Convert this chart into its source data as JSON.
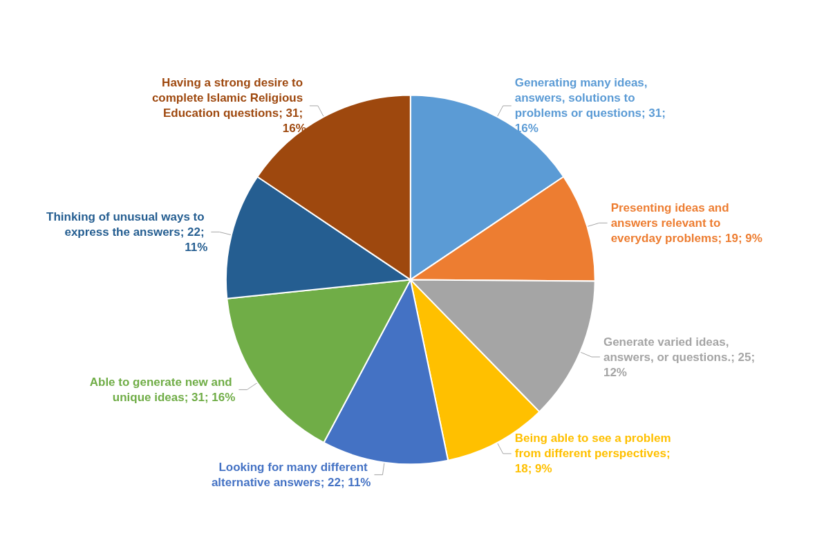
{
  "chart_data": {
    "type": "pie",
    "categories": [
      "Generating many ideas, answers, solutions to problems or questions; 31; 16%",
      "Presenting ideas and answers relevant to everyday problems; 19; 9%",
      "Generate varied ideas, answers, or questions.; 25; 12%",
      "Being able to see a problem from different perspectives; 18; 9%",
      "Looking for many different alternative answers; 22; 11%",
      "Able to generate new and unique ideas; 31; 16%",
      "Thinking of unusual ways to express the answers; 22; 11%",
      "Having a strong desire to complete Islamic Religious Education questions; 31; 16%"
    ],
    "values": [
      31,
      19,
      25,
      18,
      22,
      31,
      22,
      31
    ],
    "colors": [
      "#5b9bd5",
      "#ed7d31",
      "#a5a5a5",
      "#ffc000",
      "#4472c4",
      "#70ad47",
      "#255e91",
      "#9e480e"
    ],
    "legend": false
  }
}
